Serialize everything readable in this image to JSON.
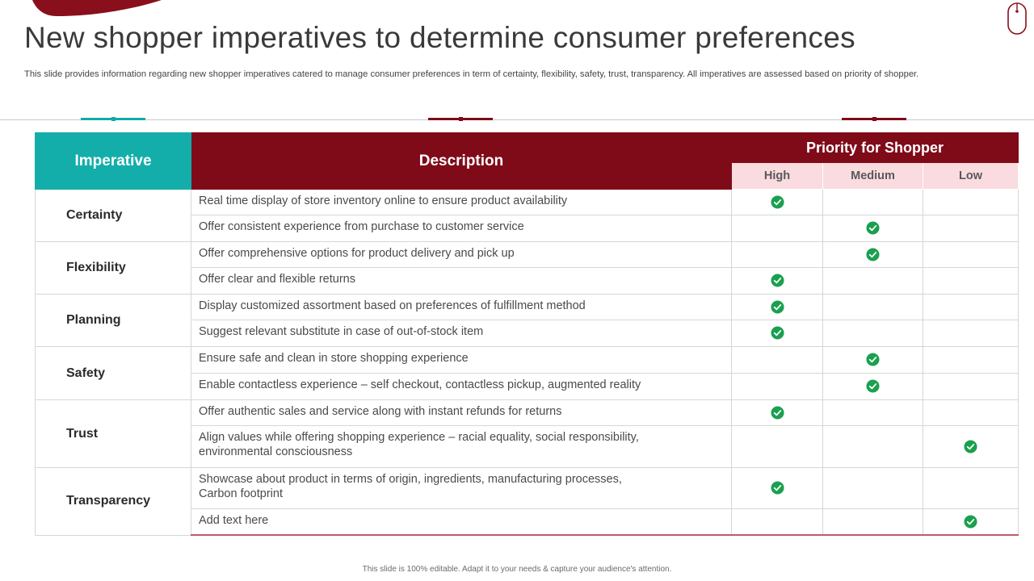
{
  "slide": {
    "title": "New shopper imperatives to determine consumer preferences",
    "subtitle": "This slide provides information regarding new shopper imperatives catered to manage consumer preferences in term of certainty, flexibility, safety, trust, transparency. All imperatives are assessed based on priority of shopper.",
    "footer": "This slide is 100% editable. Adapt it to your needs & capture your audience's attention."
  },
  "colors": {
    "teal": "#13aea9",
    "maroon": "#800b18",
    "pink": "#fadbdf",
    "check_green": "#1aa04f"
  },
  "table": {
    "headers": {
      "imperative": "Imperative",
      "description": "Description",
      "priority": "Priority for Shopper",
      "high": "High",
      "medium": "Medium",
      "low": "Low"
    },
    "groups": [
      {
        "name": "Certainty",
        "rows": [
          {
            "description": "Real time display of store inventory online to ensure product availability",
            "priority": "High"
          },
          {
            "description": "Offer consistent experience from purchase to customer service",
            "priority": "Medium"
          }
        ]
      },
      {
        "name": "Flexibility",
        "rows": [
          {
            "description": "Offer comprehensive options for product delivery and pick up",
            "priority": "Medium"
          },
          {
            "description": "Offer clear and flexible returns",
            "priority": "High"
          }
        ]
      },
      {
        "name": "Planning",
        "rows": [
          {
            "description": "Display customized assortment based on preferences of fulfillment method",
            "priority": "High"
          },
          {
            "description": "Suggest relevant substitute in case of out-of-stock item",
            "priority": "High"
          }
        ]
      },
      {
        "name": "Safety",
        "rows": [
          {
            "description": "Ensure safe and clean in store shopping experience",
            "priority": "Medium"
          },
          {
            "description": "Enable contactless experience – self checkout, contactless pickup, augmented reality",
            "priority": "Medium"
          }
        ]
      },
      {
        "name": "Trust",
        "rows": [
          {
            "description": "Offer authentic sales and service along with instant refunds for returns",
            "priority": "High"
          },
          {
            "description": "Align values while offering shopping experience – racial equality, social responsibility,\nenvironmental consciousness",
            "priority": "Low"
          }
        ]
      },
      {
        "name": "Transparency",
        "rows": [
          {
            "description": "Showcase about product in terms of origin, ingredients, manufacturing processes,\nCarbon footprint",
            "priority": "High"
          },
          {
            "description": "Add text here",
            "priority": "Low"
          }
        ]
      }
    ]
  },
  "icons": {
    "check": "check-circle-icon",
    "mouse": "mouse-icon",
    "swoosh": "decorative-swoosh"
  }
}
